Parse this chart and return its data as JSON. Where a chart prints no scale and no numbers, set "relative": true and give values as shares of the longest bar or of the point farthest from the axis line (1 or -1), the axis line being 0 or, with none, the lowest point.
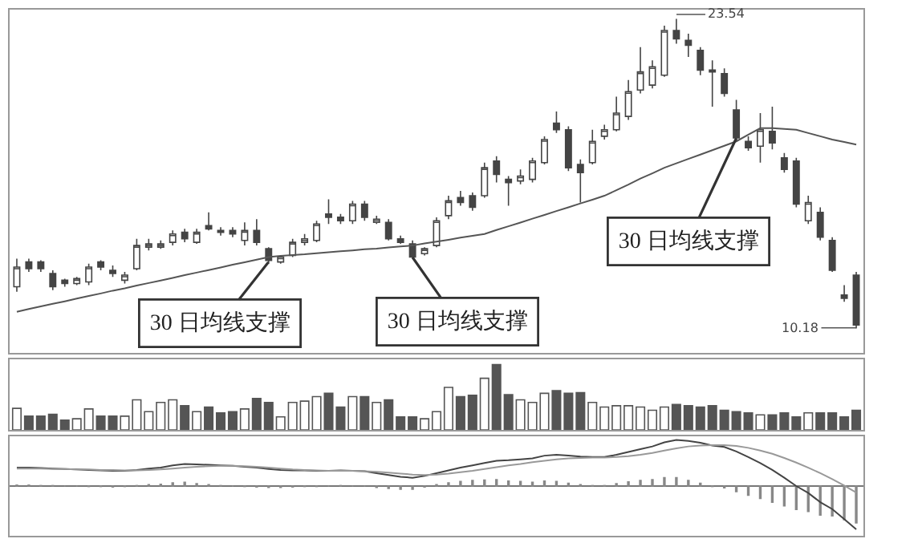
{
  "chart_data": [
    {
      "type": "candlestick",
      "color": "#444444",
      "categories": [
        null,
        null,
        null,
        null,
        null,
        null,
        null,
        null,
        null,
        null,
        null,
        null,
        null,
        null,
        null,
        null,
        null,
        null,
        null,
        null,
        null,
        null,
        null,
        null,
        null,
        null,
        null,
        null,
        null,
        null,
        null,
        null,
        null,
        null,
        null,
        null,
        null,
        null,
        null,
        null,
        null,
        null,
        null,
        null,
        null,
        null,
        null,
        null,
        null,
        null,
        null,
        null,
        null,
        null,
        null,
        null,
        null,
        null,
        null,
        null,
        null,
        null,
        null,
        null,
        null,
        null,
        null,
        null,
        null,
        null,
        null
      ],
      "ohlc": [
        [
          11.97,
          13.18,
          11.75,
          12.82
        ],
        [
          13.04,
          13.18,
          12.61,
          12.75
        ],
        [
          13.04,
          13.11,
          12.61,
          12.75
        ],
        [
          12.54,
          12.68,
          11.82,
          11.97
        ],
        [
          12.25,
          12.32,
          11.97,
          12.11
        ],
        [
          12.11,
          12.39,
          12.04,
          12.32
        ],
        [
          12.18,
          12.97,
          12.04,
          12.82
        ],
        [
          13.04,
          13.11,
          12.68,
          12.82
        ],
        [
          12.68,
          12.89,
          12.39,
          12.54
        ],
        [
          12.25,
          12.61,
          12.11,
          12.47
        ],
        [
          12.75,
          14.04,
          12.68,
          13.75
        ],
        [
          13.68,
          14.04,
          13.54,
          13.82
        ],
        [
          13.68,
          13.97,
          13.61,
          13.82
        ],
        [
          13.89,
          14.4,
          13.75,
          14.25
        ],
        [
          14.32,
          14.47,
          13.89,
          14.04
        ],
        [
          13.89,
          14.47,
          13.82,
          14.32
        ],
        [
          14.61,
          15.18,
          14.4,
          14.47
        ],
        [
          14.4,
          14.54,
          14.18,
          14.32
        ],
        [
          14.4,
          14.54,
          14.11,
          14.25
        ],
        [
          13.97,
          14.75,
          13.75,
          14.4
        ],
        [
          14.4,
          14.89,
          13.75,
          13.89
        ],
        [
          13.61,
          13.68,
          12.97,
          13.11
        ],
        [
          13.04,
          13.32,
          12.97,
          13.25
        ],
        [
          13.32,
          14.04,
          13.25,
          13.89
        ],
        [
          13.89,
          14.25,
          13.75,
          14.04
        ],
        [
          13.97,
          14.82,
          13.89,
          14.68
        ],
        [
          15.11,
          15.75,
          14.68,
          14.97
        ],
        [
          14.97,
          15.11,
          14.68,
          14.82
        ],
        [
          14.82,
          15.68,
          14.68,
          15.54
        ],
        [
          15.54,
          15.68,
          14.82,
          14.97
        ],
        [
          14.75,
          15.04,
          14.68,
          14.89
        ],
        [
          14.75,
          14.89,
          13.97,
          14.04
        ],
        [
          14.04,
          14.18,
          13.82,
          13.89
        ],
        [
          13.82,
          13.97,
          13.18,
          13.25
        ],
        [
          13.4,
          13.68,
          13.32,
          13.61
        ],
        [
          13.75,
          14.97,
          13.68,
          14.82
        ],
        [
          15.04,
          15.9,
          14.89,
          15.68
        ],
        [
          15.82,
          16.11,
          15.47,
          15.61
        ],
        [
          15.9,
          16.04,
          15.25,
          15.4
        ],
        [
          15.9,
          17.33,
          15.82,
          17.11
        ],
        [
          17.4,
          17.61,
          16.47,
          16.82
        ],
        [
          16.61,
          16.75,
          15.47,
          16.47
        ],
        [
          16.54,
          17.04,
          16.4,
          16.75
        ],
        [
          16.61,
          17.54,
          16.47,
          17.4
        ],
        [
          17.33,
          18.47,
          17.25,
          18.33
        ],
        [
          19.04,
          19.54,
          18.61,
          18.75
        ],
        [
          18.75,
          18.9,
          16.97,
          17.11
        ],
        [
          17.25,
          17.47,
          15.61,
          16.9
        ],
        [
          17.33,
          18.75,
          17.25,
          18.25
        ],
        [
          18.47,
          18.97,
          18.33,
          18.75
        ],
        [
          18.75,
          20.18,
          18.68,
          19.47
        ],
        [
          19.33,
          20.9,
          19.18,
          20.4
        ],
        [
          20.47,
          22.32,
          20.32,
          21.25
        ],
        [
          20.68,
          21.75,
          20.54,
          21.47
        ],
        [
          21.11,
          23.25,
          21.04,
          23.04
        ],
        [
          23.04,
          23.54,
          22.47,
          22.68
        ],
        [
          22.61,
          22.9,
          21.9,
          22.4
        ],
        [
          22.18,
          22.32,
          21.11,
          21.33
        ],
        [
          21.33,
          21.75,
          19.75,
          21.25
        ],
        [
          21.18,
          21.4,
          20.18,
          20.32
        ],
        [
          19.61,
          20.04,
          18.25,
          18.4
        ],
        [
          18.25,
          18.47,
          17.84,
          17.97
        ],
        [
          18.04,
          19.47,
          17.33,
          18.75
        ],
        [
          18.68,
          19.75,
          17.9,
          18.18
        ],
        [
          17.54,
          17.75,
          16.9,
          17.04
        ],
        [
          17.4,
          17.54,
          15.4,
          15.54
        ],
        [
          14.82,
          15.9,
          14.68,
          15.61
        ],
        [
          15.18,
          15.4,
          13.97,
          14.11
        ],
        [
          13.97,
          14.11,
          12.61,
          12.68
        ],
        [
          11.61,
          12.04,
          11.32,
          11.47
        ],
        [
          12.47,
          12.61,
          10.18,
          10.32
        ]
      ],
      "series": [
        {
          "type": "line",
          "color": "#555555",
          "values": [
            10.89,
            11.01,
            11.12,
            11.23,
            11.34,
            11.46,
            11.57,
            11.68,
            11.8,
            11.9,
            12.02,
            12.13,
            12.24,
            12.35,
            12.47,
            12.58,
            12.69,
            12.8,
            12.92,
            13.03,
            13.14,
            13.25,
            13.3,
            13.34,
            13.37,
            13.42,
            13.46,
            13.5,
            13.54,
            13.59,
            13.62,
            13.67,
            13.71,
            13.75,
            13.84,
            13.92,
            14.0,
            14.09,
            14.17,
            14.25,
            14.42,
            14.58,
            14.74,
            14.91,
            15.07,
            15.24,
            15.4,
            15.57,
            15.73,
            15.9,
            16.14,
            16.38,
            16.64,
            16.87,
            17.11,
            17.3,
            17.49,
            17.68,
            17.87,
            18.06,
            18.25,
            18.54,
            18.82,
            18.82,
            18.79,
            18.75,
            18.61,
            18.47,
            18.33,
            18.22,
            18.11
          ]
        }
      ],
      "annotations": [
        "30 日均线支撑",
        "30 日均线支撑",
        "30 日均线支撑",
        "23.54",
        "10.18"
      ]
    },
    {
      "type": "bar",
      "relative": true,
      "color": "#555555",
      "categories": [
        null,
        null,
        null,
        null,
        null,
        null,
        null,
        null,
        null,
        null,
        null,
        null,
        null,
        null,
        null,
        null,
        null,
        null,
        null,
        null,
        null,
        null,
        null,
        null,
        null,
        null,
        null,
        null,
        null,
        null,
        null,
        null,
        null,
        null,
        null,
        null,
        null,
        null,
        null,
        null,
        null,
        null,
        null,
        null,
        null,
        null,
        null,
        null,
        null,
        null,
        null,
        null,
        null,
        null,
        null,
        null,
        null,
        null,
        null,
        null,
        null,
        null,
        null,
        null,
        null,
        null,
        null,
        null,
        null,
        null,
        null
      ],
      "values": [
        0.33,
        0.21,
        0.21,
        0.24,
        0.15,
        0.17,
        0.32,
        0.21,
        0.21,
        0.21,
        0.46,
        0.28,
        0.42,
        0.46,
        0.37,
        0.28,
        0.35,
        0.26,
        0.28,
        0.32,
        0.48,
        0.42,
        0.2,
        0.42,
        0.44,
        0.51,
        0.56,
        0.35,
        0.51,
        0.51,
        0.42,
        0.46,
        0.2,
        0.2,
        0.17,
        0.28,
        0.65,
        0.51,
        0.53,
        0.79,
        1,
        0.54,
        0.46,
        0.42,
        0.56,
        0.6,
        0.56,
        0.57,
        0.42,
        0.35,
        0.37,
        0.37,
        0.35,
        0.3,
        0.35,
        0.39,
        0.37,
        0.35,
        0.37,
        0.3,
        0.28,
        0.26,
        0.23,
        0.23,
        0.26,
        0.2,
        0.26,
        0.26,
        0.26,
        0.2,
        0.3
      ],
      "colors": [
        "#ffffff",
        "#555555",
        "#555555",
        "#555555",
        "#555555",
        "#ffffff",
        "#ffffff",
        "#555555",
        "#555555",
        "#ffffff",
        "#ffffff",
        "#ffffff",
        "#ffffff",
        "#ffffff",
        "#555555",
        "#ffffff",
        "#555555",
        "#555555",
        "#555555",
        "#ffffff",
        "#555555",
        "#555555",
        "#ffffff",
        "#ffffff",
        "#ffffff",
        "#ffffff",
        "#555555",
        "#555555",
        "#ffffff",
        "#555555",
        "#ffffff",
        "#555555",
        "#555555",
        "#555555",
        "#ffffff",
        "#ffffff",
        "#ffffff",
        "#555555",
        "#555555",
        "#ffffff",
        "#555555",
        "#555555",
        "#ffffff",
        "#ffffff",
        "#ffffff",
        "#555555",
        "#555555",
        "#555555",
        "#ffffff",
        "#ffffff",
        "#ffffff",
        "#ffffff",
        "#ffffff",
        "#ffffff",
        "#ffffff",
        "#555555",
        "#555555",
        "#555555",
        "#555555",
        "#555555",
        "#555555",
        "#555555",
        "#ffffff",
        "#555555",
        "#555555",
        "#555555",
        "#ffffff",
        "#555555",
        "#555555",
        "#555555",
        "#555555"
      ]
    },
    {
      "type": "line",
      "relative": true,
      "categories": [
        null,
        null,
        null,
        null,
        null,
        null,
        null,
        null,
        null,
        null,
        null,
        null,
        null,
        null,
        null,
        null,
        null,
        null,
        null,
        null,
        null,
        null,
        null,
        null,
        null,
        null,
        null,
        null,
        null,
        null,
        null,
        null,
        null,
        null,
        null,
        null,
        null,
        null,
        null,
        null,
        null,
        null,
        null,
        null,
        null,
        null,
        null,
        null,
        null,
        null,
        null,
        null,
        null,
        null,
        null,
        null,
        null,
        null,
        null,
        null,
        null,
        null,
        null,
        null,
        null,
        null,
        null,
        null,
        null,
        null,
        null
      ],
      "series": [
        {
          "type": "bar",
          "color": "#888888",
          "values": [
            0.02,
            0.02,
            0.01,
            0.01,
            0,
            0,
            -0.01,
            -0.01,
            -0.02,
            -0.01,
            0.01,
            0.03,
            0.04,
            0.07,
            0.08,
            0.05,
            0.03,
            0.01,
            0,
            -0.01,
            -0.02,
            -0.03,
            -0.03,
            -0.02,
            -0.01,
            -0.01,
            0,
            0.01,
            0,
            0,
            -0.03,
            -0.05,
            -0.07,
            -0.07,
            -0.02,
            0.03,
            0.07,
            0.1,
            0.12,
            0.13,
            0.14,
            0.11,
            0.1,
            0.08,
            0.11,
            0.1,
            0.06,
            0.03,
            0.01,
            0.01,
            0.05,
            0.09,
            0.12,
            0.14,
            0.18,
            0.18,
            0.12,
            0.06,
            -0.01,
            -0.04,
            -0.12,
            -0.2,
            -0.27,
            -0.35,
            -0.43,
            -0.51,
            -0.55,
            -0.63,
            -0.65,
            -0.73,
            -0.8
          ]
        },
        {
          "type": "line",
          "color": "#444444",
          "values": [
            0.4,
            0.4,
            0.39,
            0.38,
            0.37,
            0.36,
            0.35,
            0.34,
            0.33,
            0.33,
            0.35,
            0.38,
            0.4,
            0.45,
            0.48,
            0.47,
            0.46,
            0.45,
            0.44,
            0.42,
            0.4,
            0.37,
            0.35,
            0.34,
            0.34,
            0.33,
            0.33,
            0.34,
            0.33,
            0.32,
            0.28,
            0.24,
            0.2,
            0.18,
            0.22,
            0.28,
            0.34,
            0.4,
            0.45,
            0.5,
            0.55,
            0.56,
            0.58,
            0.6,
            0.66,
            0.68,
            0.66,
            0.64,
            0.63,
            0.63,
            0.68,
            0.74,
            0.8,
            0.86,
            0.95,
            1,
            0.98,
            0.94,
            0.88,
            0.85,
            0.75,
            0.63,
            0.5,
            0.35,
            0.18,
            0,
            -0.15,
            -0.35,
            -0.5,
            -0.72,
            -0.94
          ]
        },
        {
          "type": "line",
          "color": "#999999",
          "values": [
            0.38,
            0.38,
            0.38,
            0.37,
            0.37,
            0.36,
            0.36,
            0.35,
            0.35,
            0.34,
            0.34,
            0.35,
            0.36,
            0.38,
            0.4,
            0.42,
            0.43,
            0.44,
            0.44,
            0.43,
            0.42,
            0.4,
            0.38,
            0.36,
            0.35,
            0.34,
            0.33,
            0.33,
            0.33,
            0.32,
            0.31,
            0.29,
            0.27,
            0.25,
            0.24,
            0.25,
            0.27,
            0.3,
            0.33,
            0.37,
            0.41,
            0.45,
            0.48,
            0.52,
            0.55,
            0.58,
            0.6,
            0.61,
            0.62,
            0.62,
            0.63,
            0.65,
            0.68,
            0.72,
            0.77,
            0.82,
            0.86,
            0.88,
            0.89,
            0.89,
            0.87,
            0.83,
            0.77,
            0.7,
            0.61,
            0.51,
            0.4,
            0.28,
            0.15,
            0.01,
            -0.14
          ]
        }
      ]
    }
  ]
}
